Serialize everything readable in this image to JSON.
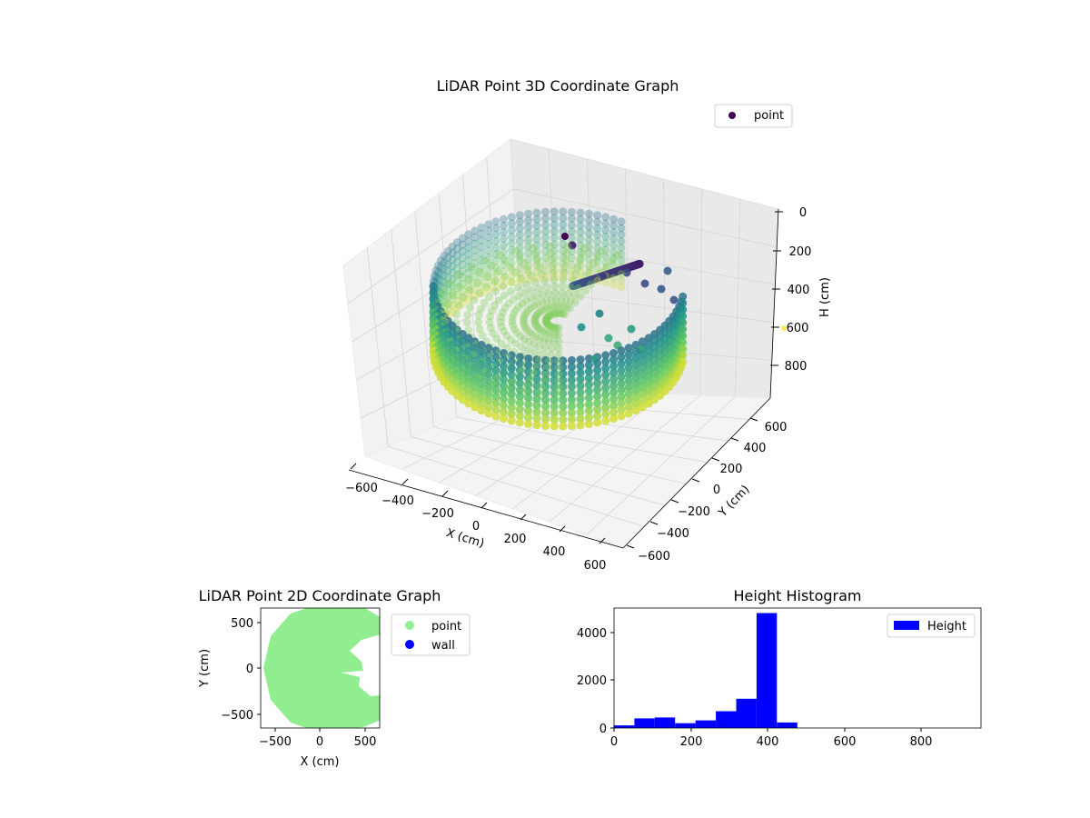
{
  "chart_data": [
    {
      "type": "scatter",
      "projection": "3d",
      "title": "LiDAR Point 3D Coordinate Graph",
      "xlabel": "X (cm)",
      "ylabel": "Y (cm)",
      "zlabel": "H (cm)",
      "xlim": [
        -650,
        650
      ],
      "ylim": [
        -650,
        650
      ],
      "zlim": [
        950,
        0
      ],
      "xticks": [
        "−600",
        "−400",
        "−200",
        "0",
        "200",
        "400",
        "600"
      ],
      "yticks": [
        "−600",
        "−400",
        "−200",
        "0",
        "200",
        "400",
        "600"
      ],
      "zticks": [
        "0",
        "200",
        "400",
        "600",
        "800"
      ],
      "zdir_inverted": true,
      "colormap": "viridis",
      "grid": true,
      "legend": {
        "entries": [
          "point"
        ],
        "position": "upper-right",
        "marker_color": "#440154"
      }
    },
    {
      "type": "scatter",
      "title": "LiDAR Point 2D Coordinate Graph",
      "xlabel": "X (cm)",
      "ylabel": "Y (cm)",
      "xlim": [
        -650,
        650
      ],
      "ylim": [
        -650,
        650
      ],
      "xticks": [
        "−500",
        "0",
        "500"
      ],
      "yticks": [
        "−500",
        "0",
        "500"
      ],
      "series": [
        {
          "name": "point",
          "color": "#90ee90"
        },
        {
          "name": "wall",
          "color": "#0000ff"
        }
      ],
      "legend": {
        "position": "outside-right"
      }
    },
    {
      "type": "bar",
      "subtype": "histogram",
      "title": "Height Histogram",
      "xlabel": "",
      "ylabel": "",
      "xlim": [
        0,
        955
      ],
      "ylim": [
        0,
        5000
      ],
      "xticks": [
        "0",
        "200",
        "400",
        "600",
        "800"
      ],
      "yticks": [
        "0",
        "2000",
        "4000"
      ],
      "bin_width": 53,
      "bins_start": [
        0,
        53,
        106,
        159,
        212,
        265,
        318,
        371,
        424
      ],
      "values": [
        110,
        400,
        440,
        200,
        320,
        700,
        1220,
        4790,
        230
      ],
      "series": [
        {
          "name": "Height",
          "color": "#0000ff"
        }
      ],
      "legend": {
        "position": "upper-right"
      }
    }
  ]
}
